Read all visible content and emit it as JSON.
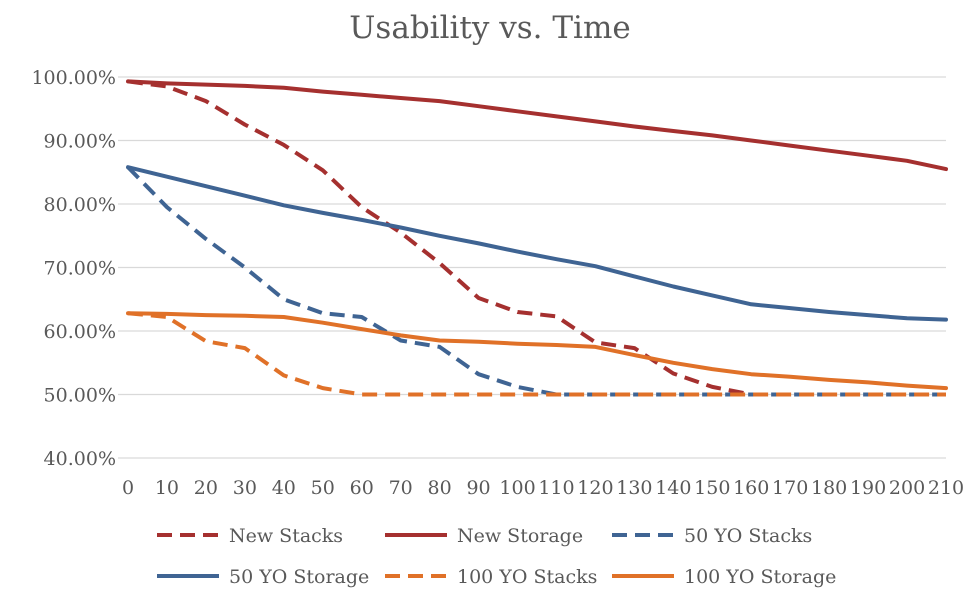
{
  "chart_data": {
    "type": "line",
    "title": "Usability vs. Time",
    "xlabel": "",
    "ylabel": "",
    "x": [
      0,
      10,
      20,
      30,
      40,
      50,
      60,
      70,
      80,
      90,
      100,
      110,
      120,
      130,
      140,
      150,
      160,
      170,
      180,
      190,
      200,
      210
    ],
    "x_tick_labels": [
      "0",
      "10",
      "20",
      "30",
      "40",
      "50",
      "60",
      "70",
      "80",
      "90",
      "100",
      "110",
      "120",
      "130",
      "140",
      "150",
      "160",
      "170",
      "180",
      "190",
      "200",
      "210"
    ],
    "ylim": [
      0.4,
      1.0
    ],
    "y_ticks": [
      0.4,
      0.5,
      0.6,
      0.7,
      0.8,
      0.9,
      1.0
    ],
    "y_tick_labels": [
      "40.00%",
      "50.00%",
      "60.00%",
      "70.00%",
      "80.00%",
      "90.00%",
      "100.00%"
    ],
    "grid": true,
    "legend_position": "bottom",
    "series": [
      {
        "name": "New Stacks",
        "color": "#A5302F",
        "dash": true,
        "values": [
          0.993,
          0.985,
          0.962,
          0.925,
          0.893,
          0.853,
          0.795,
          0.755,
          0.707,
          0.652,
          0.63,
          0.623,
          0.582,
          0.573,
          0.533,
          0.512,
          0.5,
          0.5,
          0.5,
          0.5,
          0.5,
          0.5
        ]
      },
      {
        "name": "New Storage",
        "color": "#A5302F",
        "dash": false,
        "values": [
          0.993,
          0.99,
          0.988,
          0.986,
          0.983,
          0.977,
          0.972,
          0.967,
          0.962,
          0.954,
          0.946,
          0.938,
          0.93,
          0.922,
          0.915,
          0.908,
          0.9,
          0.892,
          0.884,
          0.876,
          0.868,
          0.855
        ]
      },
      {
        "name": "50 YO Stacks",
        "color": "#3F6493",
        "dash": true,
        "values": [
          0.858,
          0.795,
          0.745,
          0.7,
          0.65,
          0.628,
          0.622,
          0.585,
          0.575,
          0.532,
          0.512,
          0.5,
          0.5,
          0.5,
          0.5,
          0.5,
          0.5,
          0.5,
          0.5,
          0.5,
          0.5,
          0.5
        ]
      },
      {
        "name": "50 YO Storage",
        "color": "#3F6493",
        "dash": false,
        "values": [
          0.858,
          0.843,
          0.828,
          0.813,
          0.798,
          0.786,
          0.775,
          0.763,
          0.75,
          0.738,
          0.725,
          0.713,
          0.702,
          0.686,
          0.67,
          0.656,
          0.642,
          0.636,
          0.63,
          0.625,
          0.62,
          0.618
        ]
      },
      {
        "name": "100 YO Stacks",
        "color": "#E07128",
        "dash": true,
        "values": [
          0.628,
          0.622,
          0.584,
          0.573,
          0.53,
          0.51,
          0.5,
          0.5,
          0.5,
          0.5,
          0.5,
          0.5,
          0.5,
          0.5,
          0.5,
          0.5,
          0.5,
          0.5,
          0.5,
          0.5,
          0.5,
          0.5
        ]
      },
      {
        "name": "100 YO Storage",
        "color": "#E07128",
        "dash": false,
        "values": [
          0.628,
          0.627,
          0.625,
          0.624,
          0.622,
          0.613,
          0.603,
          0.593,
          0.585,
          0.583,
          0.58,
          0.578,
          0.575,
          0.562,
          0.55,
          0.54,
          0.532,
          0.528,
          0.523,
          0.519,
          0.514,
          0.51
        ]
      }
    ]
  }
}
